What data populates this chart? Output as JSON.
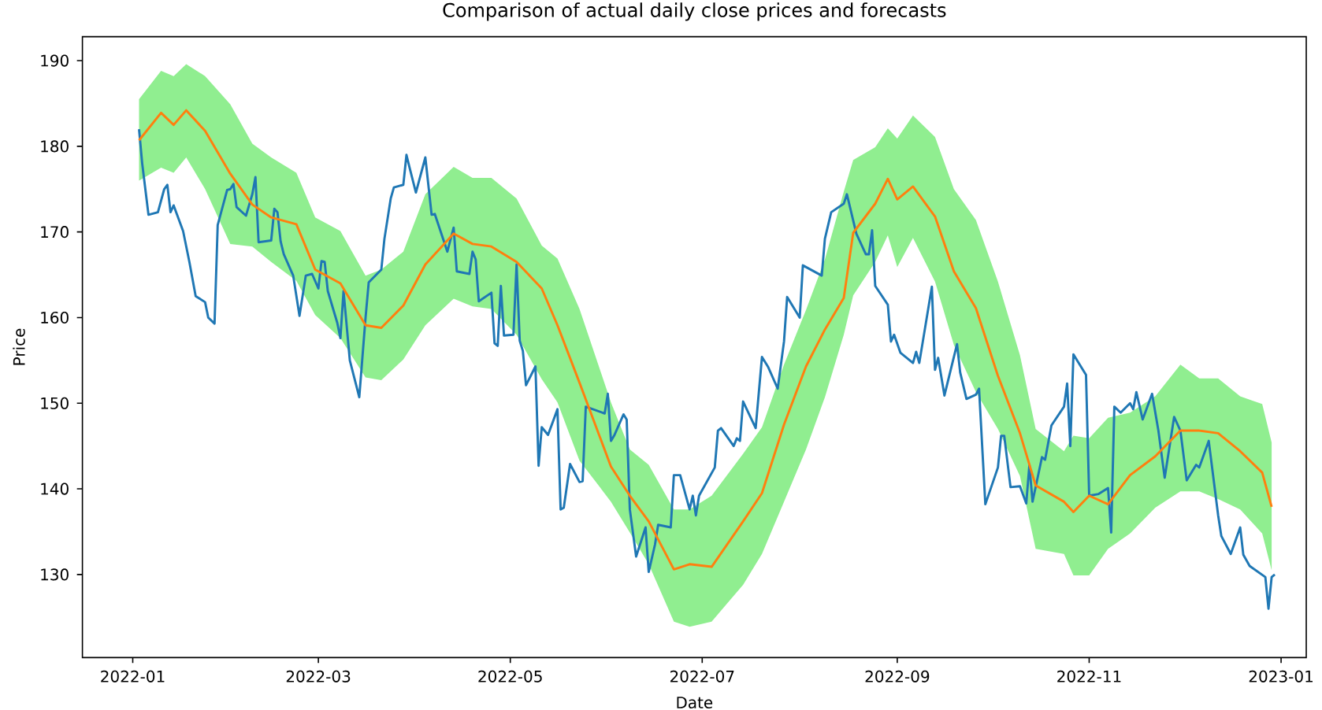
{
  "chart_data": {
    "type": "line",
    "title": "Comparison of actual daily close prices and forecasts",
    "xlabel": "Date",
    "ylabel": "Price",
    "xlim": [
      "2021-12-16",
      "2023-01-09"
    ],
    "xticks": [
      "2022-01",
      "2022-03",
      "2022-05",
      "2022-07",
      "2022-09",
      "2022-11",
      "2023-01"
    ],
    "ylim": [
      120.3,
      192.8
    ],
    "yticks": [
      130,
      140,
      150,
      160,
      170,
      180,
      190
    ],
    "grid": false,
    "marker": "none",
    "line_style": "solid",
    "series": [
      {
        "color": "#1f77b4",
        "x": [
          "2022-01-03",
          "2022-01-04",
          "2022-01-06",
          "2022-01-09",
          "2022-01-11",
          "2022-01-12",
          "2022-01-13",
          "2022-01-14",
          "2022-01-17",
          "2022-01-19",
          "2022-01-21",
          "2022-01-24",
          "2022-01-25",
          "2022-01-27",
          "2022-01-28",
          "2022-01-31",
          "2022-02-01",
          "2022-02-02",
          "2022-02-03",
          "2022-02-06",
          "2022-02-08",
          "2022-02-09",
          "2022-02-10",
          "2022-02-14",
          "2022-02-15",
          "2022-02-16",
          "2022-02-17",
          "2022-02-18",
          "2022-02-21",
          "2022-02-23",
          "2022-02-25",
          "2022-02-27",
          "2022-03-01",
          "2022-03-02",
          "2022-03-03",
          "2022-03-04",
          "2022-03-07",
          "2022-03-08",
          "2022-03-09",
          "2022-03-11",
          "2022-03-14",
          "2022-03-16",
          "2022-03-17",
          "2022-03-21",
          "2022-03-22",
          "2022-03-24",
          "2022-03-25",
          "2022-03-28",
          "2022-03-29",
          "2022-03-30",
          "2022-04-01",
          "2022-04-04",
          "2022-04-06",
          "2022-04-07",
          "2022-04-11",
          "2022-04-13",
          "2022-04-14",
          "2022-04-18",
          "2022-04-19",
          "2022-04-20",
          "2022-04-21",
          "2022-04-25",
          "2022-04-26",
          "2022-04-27",
          "2022-04-28",
          "2022-04-29",
          "2022-05-02",
          "2022-05-03",
          "2022-05-04",
          "2022-05-05",
          "2022-05-06",
          "2022-05-09",
          "2022-05-10",
          "2022-05-11",
          "2022-05-13",
          "2022-05-16",
          "2022-05-17",
          "2022-05-18",
          "2022-05-20",
          "2022-05-23",
          "2022-05-24",
          "2022-05-25",
          "2022-05-31",
          "2022-06-01",
          "2022-06-02",
          "2022-06-03",
          "2022-06-06",
          "2022-06-07",
          "2022-06-08",
          "2022-06-10",
          "2022-06-13",
          "2022-06-14",
          "2022-06-16",
          "2022-06-17",
          "2022-06-21",
          "2022-06-22",
          "2022-06-24",
          "2022-06-27",
          "2022-06-28",
          "2022-06-29",
          "2022-06-30",
          "2022-07-05",
          "2022-07-06",
          "2022-07-07",
          "2022-07-11",
          "2022-07-12",
          "2022-07-13",
          "2022-07-14",
          "2022-07-18",
          "2022-07-20",
          "2022-07-22",
          "2022-07-25",
          "2022-07-27",
          "2022-07-28",
          "2022-08-01",
          "2022-08-02",
          "2022-08-08",
          "2022-08-09",
          "2022-08-11",
          "2022-08-15",
          "2022-08-16",
          "2022-08-19",
          "2022-08-22",
          "2022-08-23",
          "2022-08-24",
          "2022-08-25",
          "2022-08-29",
          "2022-08-30",
          "2022-08-31",
          "2022-09-02",
          "2022-09-06",
          "2022-09-07",
          "2022-09-08",
          "2022-09-12",
          "2022-09-13",
          "2022-09-14",
          "2022-09-16",
          "2022-09-20",
          "2022-09-21",
          "2022-09-23",
          "2022-09-26",
          "2022-09-27",
          "2022-09-29",
          "2022-10-03",
          "2022-10-04",
          "2022-10-05",
          "2022-10-07",
          "2022-10-10",
          "2022-10-12",
          "2022-10-13",
          "2022-10-14",
          "2022-10-17",
          "2022-10-18",
          "2022-10-20",
          "2022-10-24",
          "2022-10-25",
          "2022-10-26",
          "2022-10-27",
          "2022-10-31",
          "2022-11-01",
          "2022-11-04",
          "2022-11-07",
          "2022-11-08",
          "2022-11-09",
          "2022-11-11",
          "2022-11-14",
          "2022-11-15",
          "2022-11-16",
          "2022-11-18",
          "2022-11-21",
          "2022-11-23",
          "2022-11-25",
          "2022-11-28",
          "2022-11-30",
          "2022-12-02",
          "2022-12-05",
          "2022-12-06",
          "2022-12-09",
          "2022-12-12",
          "2022-12-13",
          "2022-12-16",
          "2022-12-19",
          "2022-12-20",
          "2022-12-22",
          "2022-12-27",
          "2022-12-28",
          "2022-12-29",
          "2022-12-30"
        ],
        "values": [
          182.0,
          178,
          172,
          172.3,
          175,
          175.5,
          172.3,
          173.1,
          170.1,
          166.5,
          162.5,
          161.8,
          160,
          159.3,
          170.8,
          174.9,
          175,
          175.6,
          172.9,
          171.9,
          174.4,
          176.4,
          168.8,
          169.0,
          172.7,
          172.3,
          168.9,
          167.4,
          164.9,
          160.2,
          164.9,
          165.1,
          163.4,
          166.6,
          166.5,
          163.1,
          159.4,
          157.6,
          163.1,
          155,
          150.7,
          160,
          164.1,
          165.6,
          169.2,
          173.9,
          175.2,
          175.5,
          179,
          177.5,
          174.6,
          178.7,
          172,
          172.1,
          167.7,
          170.5,
          165.4,
          165.1,
          167.7,
          166.8,
          161.9,
          162.9,
          157,
          156.7,
          163.7,
          157.9,
          158.0,
          166.2,
          157.3,
          156.1,
          152.1,
          154.3,
          142.7,
          147.2,
          146.3,
          149.3,
          137.6,
          137.8,
          142.9,
          140.8,
          140.9,
          149.6,
          148.8,
          151.1,
          145.6,
          146.2,
          148.7,
          148.1,
          137.6,
          132.1,
          135.5,
          130.3,
          133.5,
          135.8,
          135.5,
          141.6,
          141.6,
          137.6,
          139.2,
          136.9,
          139.2,
          142.5,
          146.8,
          147.1,
          145.0,
          145.9,
          145.6,
          150.2,
          147.1,
          155.4,
          154.2,
          151.7,
          157.2,
          162.4,
          160.0,
          166.1,
          164.9,
          169.2,
          172.3,
          173.3,
          174.4,
          169.8,
          167.4,
          167.4,
          170.2,
          163.7,
          161.5,
          157.2,
          158.0,
          155.9,
          154.7,
          156.0,
          154.7,
          163.6,
          153.9,
          155.3,
          150.9,
          156.9,
          153.6,
          150.5,
          151.0,
          151.7,
          138.2,
          142.5,
          146.2,
          146.2,
          140.2,
          140.3,
          138.3,
          142.8,
          138.5,
          143.7,
          143.4,
          147.4,
          149.6,
          152.3,
          145.0,
          155.7,
          153.3,
          139.2,
          139.4,
          140.1,
          134.9,
          149.6,
          148.9,
          150.0,
          149.3,
          151.3,
          148.1,
          151.1,
          146.8,
          141.3,
          148.4,
          146.8,
          141.0,
          142.8,
          142.5,
          145.6,
          136.9,
          134.5,
          132.4,
          135.5,
          132.3,
          131.0,
          129.7,
          126.0,
          129.7,
          130.0
        ]
      },
      {
        "color": "#ff7f0e",
        "x": [
          "2022-01-03",
          "2022-01-10",
          "2022-01-14",
          "2022-01-18",
          "2022-01-24",
          "2022-02-01",
          "2022-02-08",
          "2022-02-14",
          "2022-02-22",
          "2022-02-28",
          "2022-03-08",
          "2022-03-16",
          "2022-03-21",
          "2022-03-28",
          "2022-04-04",
          "2022-04-13",
          "2022-04-19",
          "2022-04-25",
          "2022-05-03",
          "2022-05-11",
          "2022-05-16",
          "2022-05-23",
          "2022-06-02",
          "2022-06-08",
          "2022-06-14",
          "2022-06-22",
          "2022-06-27",
          "2022-07-04",
          "2022-07-14",
          "2022-07-20",
          "2022-07-27",
          "2022-08-03",
          "2022-08-09",
          "2022-08-15",
          "2022-08-18",
          "2022-08-25",
          "2022-08-29",
          "2022-09-01",
          "2022-09-06",
          "2022-09-13",
          "2022-09-19",
          "2022-09-26",
          "2022-10-03",
          "2022-10-10",
          "2022-10-15",
          "2022-10-24",
          "2022-10-27",
          "2022-11-01",
          "2022-11-07",
          "2022-11-14",
          "2022-11-22",
          "2022-11-30",
          "2022-12-06",
          "2022-12-12",
          "2022-12-19",
          "2022-12-26",
          "2022-12-29"
        ],
        "values": [
          180.7,
          183.9,
          182.5,
          184.2,
          181.8,
          176.8,
          173.2,
          171.7,
          170.9,
          165.6,
          164.0,
          159.1,
          158.8,
          161.4,
          166.2,
          169.8,
          168.6,
          168.3,
          166.5,
          163.4,
          159.1,
          152.4,
          142.6,
          139.2,
          136.2,
          130.6,
          131.2,
          130.9,
          136.2,
          139.5,
          147.5,
          154.3,
          158.6,
          162.3,
          169.9,
          173.3,
          176.2,
          173.8,
          175.3,
          171.8,
          165.4,
          161.1,
          153.2,
          146.5,
          140.4,
          138.5,
          137.3,
          139.2,
          138.2,
          141.6,
          143.8,
          146.8,
          146.8,
          146.5,
          144.4,
          141.9,
          137.9
        ],
        "lower": [
          176.0,
          177.5,
          176.9,
          178.7,
          175.0,
          168.6,
          168.3,
          166.5,
          164.3,
          160.3,
          157.6,
          153.0,
          152.7,
          155.1,
          159.1,
          162.2,
          161.3,
          161.0,
          158.0,
          152.8,
          150.1,
          143.3,
          138.5,
          134.9,
          131.2,
          124.5,
          123.9,
          124.5,
          128.8,
          132.4,
          138.5,
          144.6,
          150.7,
          158.0,
          162.6,
          166.5,
          169.6,
          165.9,
          169.3,
          164.2,
          156.8,
          151.3,
          147.0,
          141.5,
          133.0,
          132.4,
          129.9,
          129.9,
          133.0,
          134.8,
          137.8,
          139.7,
          139.7,
          138.8,
          137.6,
          134.8,
          130.5
        ],
        "upper": [
          185.5,
          188.8,
          188.2,
          189.6,
          188.2,
          184.9,
          180.3,
          178.7,
          176.9,
          171.7,
          170.1,
          164.9,
          165.6,
          167.7,
          174.4,
          177.6,
          176.3,
          176.3,
          173.9,
          168.4,
          166.9,
          161.0,
          150.1,
          144.6,
          142.8,
          137.6,
          137.6,
          139.2,
          144.1,
          147.2,
          154.5,
          160.9,
          166.8,
          174.7,
          178.4,
          179.9,
          182.1,
          180.9,
          183.6,
          181.1,
          175.0,
          171.4,
          164.2,
          155.6,
          147.0,
          144.4,
          146.2,
          145.9,
          148.3,
          148.9,
          150.8,
          154.5,
          152.9,
          152.9,
          150.8,
          149.9,
          145.4
        ]
      }
    ]
  }
}
